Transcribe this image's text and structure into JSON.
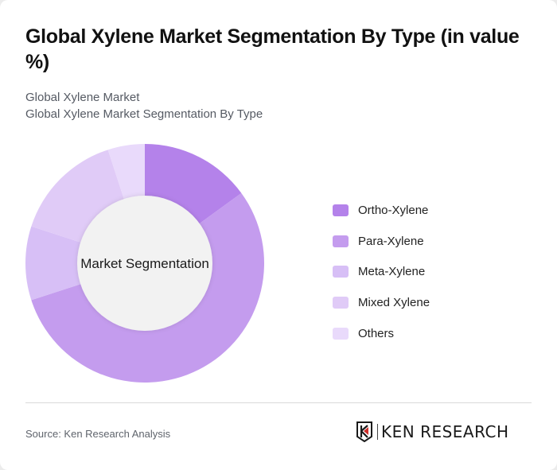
{
  "header": {
    "title": "Global Xylene Market Segmentation By Type (in value %)",
    "subtitle_1": "Global Xylene Market",
    "subtitle_2": "Global Xylene Market Segmentation By Type"
  },
  "chart_center_label": "Market Segmentation",
  "legend": [
    {
      "label": "Ortho-Xylene",
      "color": "#b482ea"
    },
    {
      "label": "Para-Xylene",
      "color": "#c49cee"
    },
    {
      "label": "Meta-Xylene",
      "color": "#d7bff6"
    },
    {
      "label": "Mixed Xylene",
      "color": "#e0cbf7"
    },
    {
      "label": "Others",
      "color": "#e9dafb"
    }
  ],
  "footer": {
    "source": "Source: Ken Research Analysis",
    "logo_text": "KEN RESEARCH"
  },
  "chart_data": {
    "type": "pie",
    "variant": "donut",
    "title": "Global Xylene Market Segmentation By Type (in value %)",
    "subtitle": [
      "Global Xylene Market",
      "Global Xylene Market Segmentation By Type"
    ],
    "center_label": "Market Segmentation",
    "categories": [
      "Ortho-Xylene",
      "Para-Xylene",
      "Meta-Xylene",
      "Mixed Xylene",
      "Others"
    ],
    "values": [
      15,
      55,
      10,
      15,
      5
    ],
    "colors": [
      "#b482ea",
      "#c49cee",
      "#d7bff6",
      "#e0cbf7",
      "#e9dafb"
    ],
    "legend_position": "right",
    "start_angle_deg": 0,
    "direction": "clockwise",
    "unit": "%"
  }
}
